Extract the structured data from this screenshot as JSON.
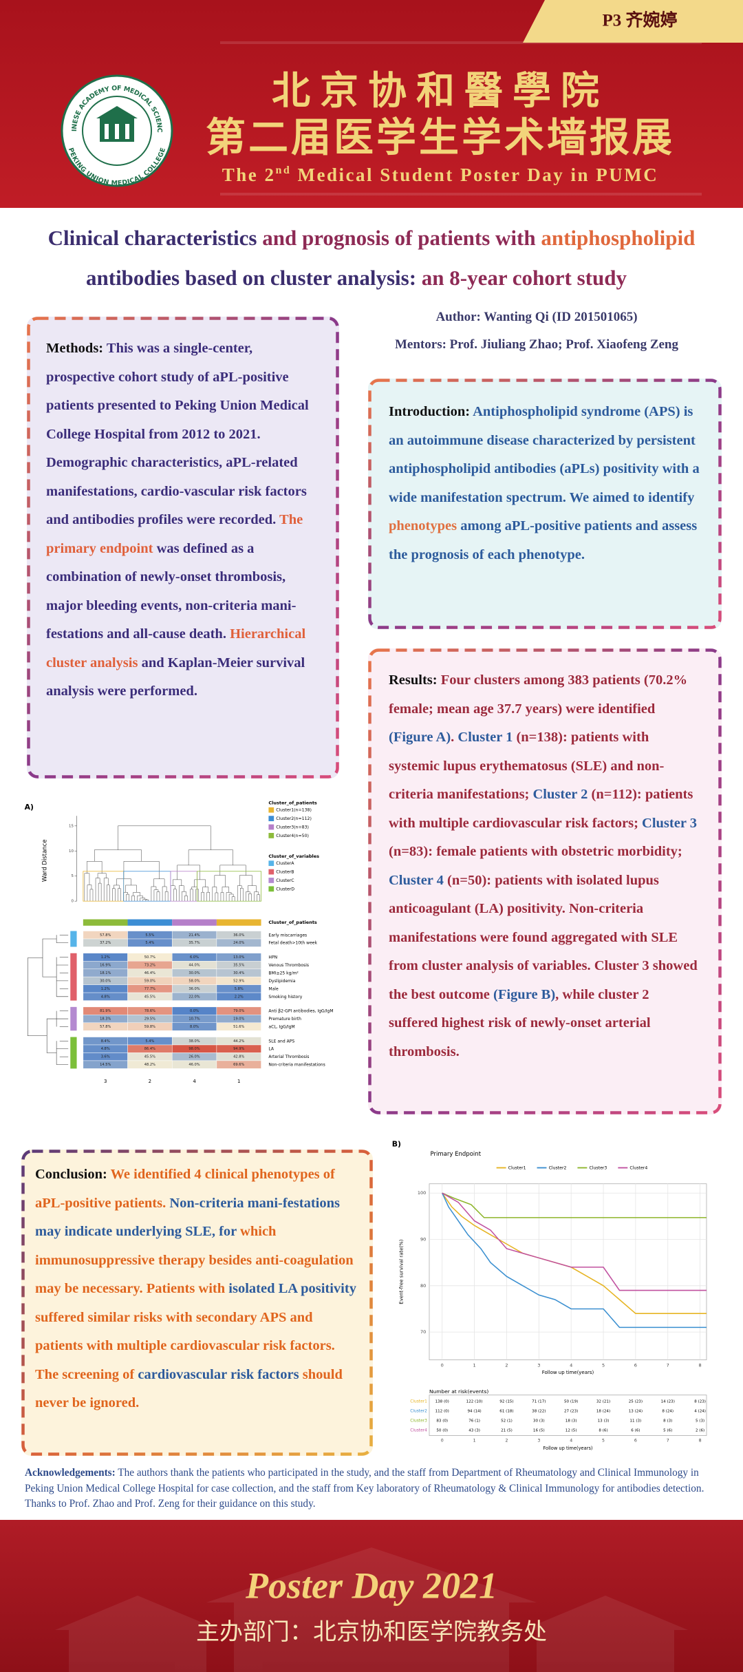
{
  "header": {
    "tab": "P3  齐婉婷",
    "logo_top": "CHINESE ACADEMY OF MEDICAL SCIENCES",
    "logo_bottom": "PEKING UNION MEDICAL COLLEGE",
    "title_cn": "北京协和醫學院",
    "subtitle_cn": "第二届医学生学术墙报展",
    "title_en": [
      "The 2",
      "nd",
      " Medical Student Poster Day in PUMC"
    ]
  },
  "title": {
    "line1": [
      {
        "text": "Clinical characteristics ",
        "color": "#3b2d6e"
      },
      {
        "text": "and prognosis of patients with ",
        "color": "#8e2a55"
      },
      {
        "text": "antiphospholipid",
        "color": "#e0683c"
      }
    ],
    "line2": [
      {
        "text": "antibodies based on cluster analysis: ",
        "color": "#3b2d6e"
      },
      {
        "text": "an 8-year cohort study",
        "color": "#8e2a55"
      }
    ]
  },
  "author": "Author: Wanting Qi (ID 201501065)",
  "mentors": "Mentors: Prof. Jiuliang Zhao; Prof. Xiaofeng Zeng",
  "methods": [
    {
      "text": "Methods: ",
      "color": "#111111"
    },
    {
      "text": "This was a single-center, prospective cohort study of aPL-positive patients presented to Peking Union Medical College Hospital from 2012 to 2021. Demographic characteristics, aPL-related manifestations, cardio-vascular risk factors and antibodies profiles were recorded. ",
      "color": "#3b2d7a"
    },
    {
      "text": "The primary endpoint",
      "color": "#e0603a"
    },
    {
      "text": " was defined as a combination of newly-onset thrombosis, major bleeding events, non-criteria mani-festations and all-cause death. ",
      "color": "#3b2d7a"
    },
    {
      "text": "Hierarchical cluster analysis",
      "color": "#e0603a"
    },
    {
      "text": " and Kaplan-Meier survival analysis were performed.",
      "color": "#3b2d7a"
    }
  ],
  "introduction": [
    {
      "text": "Introduction: ",
      "color": "#111111"
    },
    {
      "text": "Antiphospholipid syndrome (APS) is an autoimmune disease characterized by persistent antiphospholipid antibodies (aPLs) positivity with a wide manifestation spectrum. We aimed to identify ",
      "color": "#2d5b9c"
    },
    {
      "text": "phenotypes",
      "color": "#e07040"
    },
    {
      "text": " among aPL-positive patients and assess the prognosis of each phenotype.",
      "color": "#2d5b9c"
    }
  ],
  "results": [
    {
      "text": "Results: ",
      "color": "#111111"
    },
    {
      "text": "Four clusters among 383 patients (70.2% female; mean age 37.7 years) were identified ",
      "color": "#9c2a3c"
    },
    {
      "text": "(Figure A)",
      "color": "#2d5b9c"
    },
    {
      "text": ". ",
      "color": "#9c2a3c"
    },
    {
      "text": "Cluster 1",
      "color": "#2d5b9c"
    },
    {
      "text": " (n=138): patients with systemic lupus erythematosus (SLE) and non-criteria manifestations; ",
      "color": "#9c2a3c"
    },
    {
      "text": "Cluster 2",
      "color": "#2d5b9c"
    },
    {
      "text": " (n=112): patients with multiple cardiovascular risk factors; ",
      "color": "#9c2a3c"
    },
    {
      "text": "Cluster 3",
      "color": "#2d5b9c"
    },
    {
      "text": " (n=83): female patients with obstetric morbidity; ",
      "color": "#9c2a3c"
    },
    {
      "text": "Cluster 4",
      "color": "#2d5b9c"
    },
    {
      "text": " (n=50): patients with isolated lupus anticoagulant (LA) positivity. Non-criteria manifestations were found aggregated with SLE from cluster analysis of variables. Cluster 3 showed the best outcome ",
      "color": "#9c2a3c"
    },
    {
      "text": "(Figure B)",
      "color": "#2d5b9c"
    },
    {
      "text": ", while cluster 2 suffered highest risk of newly-onset arterial thrombosis.",
      "color": "#9c2a3c"
    }
  ],
  "conclusion": [
    {
      "text": "Conclusion: ",
      "color": "#111111"
    },
    {
      "text": "We identified 4 clinical phenotypes of aPL-positive patients. ",
      "color": "#e0651e"
    },
    {
      "text": "Non-criteria mani-festations may indicate underlying SLE, for",
      "color": "#2d5b9c"
    },
    {
      "text": " which immunosuppressive therapy besides anti-coagulation may be necessary. Patients with ",
      "color": "#e0651e"
    },
    {
      "text": "isolated LA positivity",
      "color": "#2d5b9c"
    },
    {
      "text": " suffered similar risks with secondary APS and patients with multiple cardiovascular risk factors. The screening of ",
      "color": "#e0651e"
    },
    {
      "text": "cardiovascular risk factors",
      "color": "#2d5b9c"
    },
    {
      "text": " should never be ignored.",
      "color": "#e0651e"
    }
  ],
  "figure_a": {
    "label": "A)",
    "y_label": "Ward Distance",
    "ylim": [
      0,
      17
    ],
    "yticks": [
      0,
      5,
      10,
      15
    ],
    "legend_patients": {
      "title": "Cluster_of_patients",
      "items": [
        {
          "name": "Cluster1(n=138)",
          "color": "#e8b531"
        },
        {
          "name": "Cluster2(n=112)",
          "color": "#3d8ed4"
        },
        {
          "name": "Cluster3(n=83)",
          "color": "#b57fc9"
        },
        {
          "name": "Cluster4(n=50)",
          "color": "#8dbb3a"
        }
      ]
    },
    "legend_variables": {
      "title": "Cluster_of_variables",
      "items": [
        {
          "name": "ClusterA",
          "color": "#56b4e9"
        },
        {
          "name": "ClusterB",
          "color": "#e0606a"
        },
        {
          "name": "ClusterC",
          "color": "#b48ad0"
        },
        {
          "name": "ClusterD",
          "color": "#7cbf3a"
        }
      ]
    },
    "heatmap_legend_title": "Cluster_of_patients",
    "columns": [
      "3",
      "2",
      "4",
      "1"
    ],
    "column_colors": [
      "#8dbb3a",
      "#3d8ed4",
      "#b57fc9",
      "#e8b531"
    ],
    "groups": [
      {
        "color": "#56b4e9",
        "rows": [
          {
            "label": "Early miscarriages",
            "cells": [
              "57.8%",
              "5.5%",
              "21.4%",
              "36.0%"
            ]
          },
          {
            "label": "Fetal death>10th week",
            "cells": [
              "37.2%",
              "5.4%",
              "35.7%",
              "24.0%"
            ]
          }
        ]
      },
      {
        "color": "#e0606a",
        "rows": [
          {
            "label": "HPN",
            "cells": [
              "1.2%",
              "50.7%",
              "6.0%",
              "13.0%"
            ]
          },
          {
            "label": "Venous Thrombosis",
            "cells": [
              "16.9%",
              "73.2%",
              "44.0%",
              "35.5%"
            ]
          },
          {
            "label": "BMI≥25 kg/m²",
            "cells": [
              "18.1%",
              "46.4%",
              "30.0%",
              "30.4%"
            ]
          },
          {
            "label": "Dyslipidemia",
            "cells": [
              "30.0%",
              "59.0%",
              "58.0%",
              "52.9%"
            ]
          },
          {
            "label": "Male",
            "cells": [
              "1.2%",
              "77.7%",
              "36.0%",
              "5.8%"
            ]
          },
          {
            "label": "Smoking history",
            "cells": [
              "4.8%",
              "45.5%",
              "22.0%",
              "2.2%"
            ]
          }
        ]
      },
      {
        "color": "#b48ad0",
        "rows": [
          {
            "label": "Anti β2-GPI antibodies, IgG/IgM",
            "cells": [
              "81.9%",
              "78.6%",
              "0.0%",
              "79.0%"
            ]
          },
          {
            "label": "Premature birth",
            "cells": [
              "18.3%",
              "29.5%",
              "10.7%",
              "19.0%"
            ]
          },
          {
            "label": "aCL, IgG/IgM",
            "cells": [
              "57.8%",
              "59.8%",
              "8.0%",
              "51.6%"
            ]
          }
        ]
      },
      {
        "color": "#7cbf3a",
        "rows": [
          {
            "label": "SLE and APS",
            "cells": [
              "8.4%",
              "5.4%",
              "38.0%",
              "44.2%"
            ]
          },
          {
            "label": "LA",
            "cells": [
              "4.8%",
              "86.4%",
              "98.0%",
              "94.9%"
            ]
          },
          {
            "label": "Arterial Thrombosis",
            "cells": [
              "3.6%",
              "45.5%",
              "26.0%",
              "42.8%"
            ]
          },
          {
            "label": "Non-criteria manifestations",
            "cells": [
              "14.5%",
              "48.2%",
              "46.0%",
              "69.6%"
            ]
          }
        ]
      }
    ]
  },
  "figure_b": {
    "type": "line",
    "label": "B)",
    "title": "Primary Endpoint",
    "y_label": "Event-free survival rate(%)",
    "x_label": "Follow up time(years)",
    "xlim": [
      -0.4,
      8.2
    ],
    "ylim": [
      64,
      102
    ],
    "xticks": [
      0,
      1,
      2,
      3,
      4,
      5,
      6,
      7,
      8
    ],
    "yticks": [
      70,
      80,
      90,
      100
    ],
    "grid": true,
    "series": [
      {
        "name": "Cluster1",
        "color": "#e6b422",
        "x": [
          0,
          0.3,
          0.6,
          1,
          1.5,
          2,
          2.5,
          3,
          3.5,
          4,
          4.5,
          5,
          5.5,
          6,
          6.5,
          8.2
        ],
        "values": [
          100,
          97,
          95,
          93,
          91,
          89,
          87,
          86,
          85,
          84,
          82,
          80,
          77,
          74,
          74,
          74
        ]
      },
      {
        "name": "Cluster2",
        "color": "#3a8fd0",
        "x": [
          0,
          0.2,
          0.5,
          0.8,
          1.2,
          1.5,
          2,
          2.5,
          3,
          3.5,
          4,
          5,
          5.5,
          8.2
        ],
        "values": [
          100,
          97,
          94,
          91,
          88,
          85,
          82,
          80,
          78,
          77,
          75,
          75,
          71,
          71
        ]
      },
      {
        "name": "Cluster3",
        "color": "#8db52a",
        "x": [
          0,
          0.4,
          0.9,
          1.3,
          8.2
        ],
        "values": [
          100,
          98.8,
          97.5,
          94.7,
          94.7
        ]
      },
      {
        "name": "Cluster4",
        "color": "#c0509f",
        "x": [
          0,
          0.5,
          1,
          1.5,
          2,
          3,
          4,
          5,
          5.5,
          8.2
        ],
        "values": [
          100,
          98,
          94,
          92,
          88,
          86,
          84,
          84,
          79,
          79
        ]
      }
    ],
    "risk_table": {
      "title": "Number at risk(events)",
      "rows": [
        [
          "138 (0)",
          "122 (10)",
          "92 (15)",
          "71 (17)",
          "50 (19)",
          "32 (21)",
          "25 (23)",
          "14 (23)",
          "8 (23)"
        ],
        [
          "112 (0)",
          "94 (14)",
          "61 (18)",
          "38 (22)",
          "27 (23)",
          "18 (24)",
          "13 (24)",
          "8 (24)",
          "4 (24)"
        ],
        [
          "83 (0)",
          "76 (1)",
          "52 (1)",
          "30 (3)",
          "18 (3)",
          "13 (3)",
          "11 (3)",
          "8 (3)",
          "5 (3)"
        ],
        [
          "50 (0)",
          "43 (3)",
          "21 (5)",
          "16 (5)",
          "12 (5)",
          "8 (6)",
          "6 (6)",
          "5 (6)",
          "2 (6)"
        ]
      ]
    }
  },
  "acknowledgements": [
    {
      "text": "Acknowledgements:",
      "color": "#2d4a8a"
    },
    {
      "text": " The authors thank the patients who participated in the study, and the staff from Department of Rheumatology and Clinical Immunology in Peking Union Medical College Hospital for case collection, and the staff from Key laboratory of Rheumatology & Clinical Immunology for antibodies detection. Thanks to Prof. Zhao and Prof. Zeng for their guidance on this study.",
      "color": "#2d4a8a"
    }
  ],
  "footer": {
    "event": "Poster Day 2021",
    "organizer": "主办部门：北京协和医学院教务处"
  }
}
